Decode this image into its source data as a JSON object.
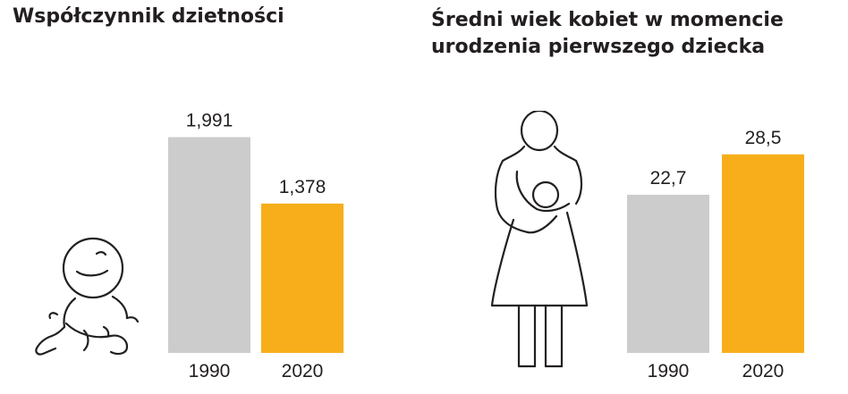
{
  "chart_data": [
    {
      "type": "bar",
      "title": "Współczynnik dzietności",
      "categories": [
        "1990",
        "2020"
      ],
      "values": [
        1.991,
        1.378
      ],
      "value_labels": [
        "1,991",
        "1,378"
      ],
      "ylim": [
        0,
        2.16
      ],
      "grid": false,
      "colors": [
        "#cccccc",
        "#f7ae1a"
      ],
      "icon": "baby-icon"
    },
    {
      "type": "bar",
      "title_lines": [
        "Średni wiek kobiet w momencie",
        "urodzenia pierwszego dziecka"
      ],
      "categories": [
        "1990",
        "2020"
      ],
      "values": [
        22.7,
        28.5
      ],
      "value_labels": [
        "22,7",
        "28,5"
      ],
      "ylim": [
        0,
        33.6
      ],
      "grid": false,
      "colors": [
        "#cccccc",
        "#f7ae1a"
      ],
      "icon": "mother-with-child-icon"
    }
  ]
}
